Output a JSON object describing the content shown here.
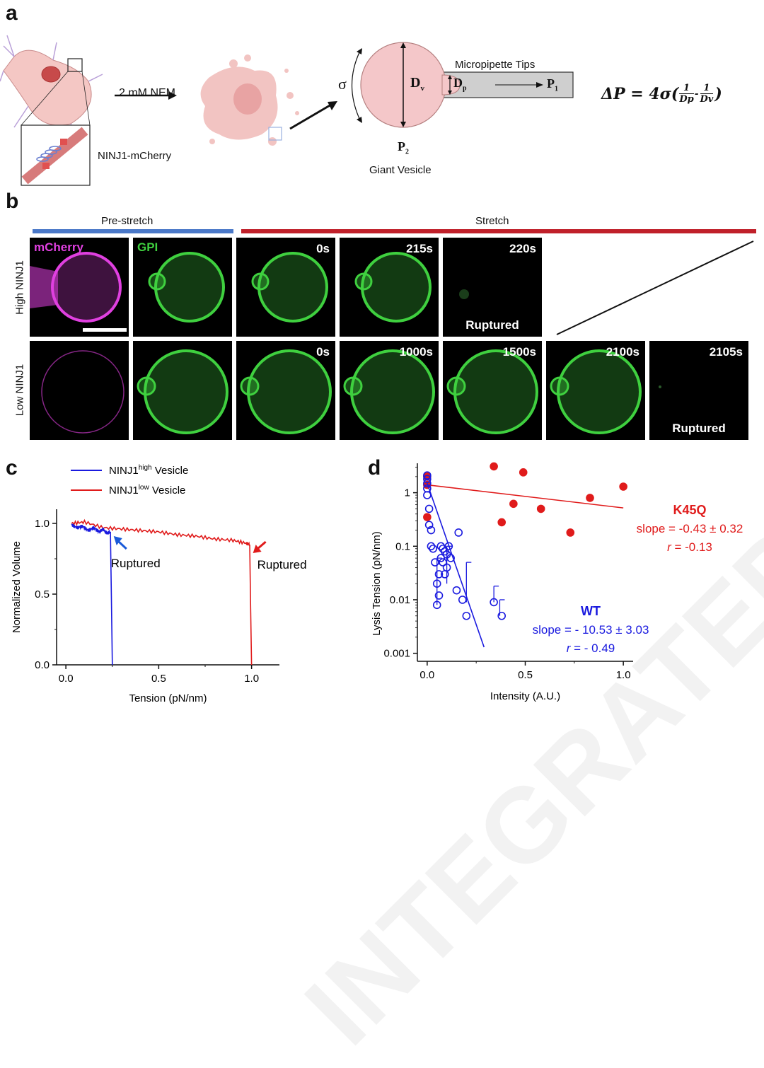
{
  "panels": {
    "a": "a",
    "b": "b",
    "c": "c",
    "d": "d"
  },
  "panel_a": {
    "nem_label": "2 mM NEM",
    "ninj_label": "NINJ1-mCherry",
    "sigma": "σ",
    "dv": "D",
    "dv_sub": "v",
    "dp": "D",
    "dp_sub": "p",
    "p1": "P",
    "p1_sub": "1",
    "p2": "P",
    "p2_sub": "2",
    "pipette_label": "Micropipette Tips",
    "vesicle_label": "Giant Vesicle",
    "equation": "ΔP = 4σ(",
    "eq_frac1_num": "1",
    "eq_frac1_den": "Dp",
    "eq_minus": "-",
    "eq_frac2_num": "1",
    "eq_frac2_den": "Dv",
    "eq_close": ")"
  },
  "panel_b": {
    "prestretch": "Pre-stretch",
    "stretch": "Stretch",
    "row_high": "High NINJ1",
    "row_low": "Low NINJ1",
    "colors": {
      "prestretch": "#4a78c8",
      "stretch": "#c0202a",
      "mcherry": "#e040e0",
      "gpi": "#3fd03f"
    },
    "high_tiles": [
      {
        "tl": "mCherry",
        "tr": "",
        "bottom": ""
      },
      {
        "tl": "GPI",
        "tr": "",
        "bottom": ""
      },
      {
        "tl": "",
        "tr": "0s",
        "bottom": ""
      },
      {
        "tl": "",
        "tr": "215s",
        "bottom": ""
      },
      {
        "tl": "",
        "tr": "220s",
        "bottom": "Ruptured"
      }
    ],
    "low_tiles": [
      {
        "tr": "",
        "bottom": ""
      },
      {
        "tr": "",
        "bottom": ""
      },
      {
        "tr": "0s",
        "bottom": ""
      },
      {
        "tr": "1000s",
        "bottom": ""
      },
      {
        "tr": "1500s",
        "bottom": ""
      },
      {
        "tr": "2100s",
        "bottom": ""
      },
      {
        "tr": "2105s",
        "bottom": "Ruptured"
      }
    ]
  },
  "chart_data": [
    {
      "type": "line",
      "xlabel": "Tension (pN/nm)",
      "ylabel": "Normalized Volume",
      "xlim": [
        -0.05,
        1.15
      ],
      "ylim": [
        0,
        1.1
      ],
      "xticks": [
        "0.0",
        "0.5",
        "1.0"
      ],
      "yticks": [
        "0.0",
        "0.5",
        "1.0"
      ],
      "legend_position": "top-center",
      "series": [
        {
          "name": "NINJ1",
          "name_sup": "high",
          "name_suffix": " Vesicle",
          "color": "#1a1adf",
          "x": [
            0.03,
            0.06,
            0.09,
            0.12,
            0.15,
            0.18,
            0.2,
            0.22,
            0.24,
            0.245,
            0.25
          ],
          "y": [
            0.99,
            0.97,
            0.98,
            0.95,
            0.97,
            0.94,
            0.96,
            0.93,
            0.94,
            0.5,
            0.0
          ]
        },
        {
          "name": "NINJ1",
          "name_sup": "low",
          "name_suffix": " Vesicle",
          "color": "#e01b1b",
          "x": [
            0.03,
            0.1,
            0.2,
            0.3,
            0.4,
            0.5,
            0.6,
            0.7,
            0.8,
            0.9,
            0.97,
            0.99,
            0.995,
            1.0
          ],
          "y": [
            1.0,
            1.01,
            0.97,
            0.96,
            0.95,
            0.94,
            0.92,
            0.91,
            0.89,
            0.88,
            0.86,
            0.85,
            0.4,
            0.0
          ]
        }
      ],
      "annotations": [
        {
          "text": "Ruptured",
          "x": 0.25,
          "y": 0.93
        },
        {
          "text": "Ruptured",
          "x": 1.0,
          "y": 0.86
        }
      ]
    },
    {
      "type": "scatter",
      "xlabel": "Intensity (A.U.)",
      "ylabel": "Lysis Tension (pN/nm)",
      "xlim": [
        -0.05,
        1.05
      ],
      "ylim_log10": [
        -3.15,
        0.55
      ],
      "y_scale": "log",
      "xticks": [
        "0.0",
        "0.5",
        "1.0"
      ],
      "yticks": [
        "0.001",
        "0.01",
        "0.1",
        "1"
      ],
      "series": [
        {
          "name": "K45Q",
          "color": "#e01b1b",
          "fill": true,
          "x": [
            0.0,
            0.0,
            0.0,
            0.34,
            0.38,
            0.44,
            0.49,
            0.58,
            0.73,
            0.83,
            1.0
          ],
          "y": [
            2.0,
            1.4,
            0.35,
            3.1,
            0.28,
            0.62,
            2.4,
            0.5,
            0.18,
            0.8,
            1.3
          ],
          "fit": {
            "x": [
              0.0,
              1.0
            ],
            "y": [
              1.4,
              0.52
            ]
          },
          "stats": [
            "K45Q",
            "slope = -0.43 ± 0.32",
            "r = -0.13"
          ]
        },
        {
          "name": "WT",
          "color": "#1a1adf",
          "fill": false,
          "x": [
            0.0,
            0.0,
            0.0,
            0.0,
            0.0,
            0.01,
            0.01,
            0.02,
            0.02,
            0.03,
            0.04,
            0.05,
            0.05,
            0.06,
            0.06,
            0.07,
            0.07,
            0.08,
            0.08,
            0.09,
            0.09,
            0.1,
            0.1,
            0.11,
            0.12,
            0.15,
            0.16,
            0.18,
            0.2,
            0.34,
            0.38
          ],
          "y": [
            2.1,
            1.8,
            1.5,
            1.2,
            0.9,
            0.5,
            0.25,
            0.2,
            0.1,
            0.09,
            0.05,
            0.02,
            0.008,
            0.03,
            0.012,
            0.06,
            0.1,
            0.09,
            0.05,
            0.03,
            0.08,
            0.07,
            0.04,
            0.1,
            0.06,
            0.015,
            0.18,
            0.01,
            0.005,
            0.009,
            0.005
          ],
          "fit": {
            "x": [
              0.0,
              0.29
            ],
            "y": [
              1.5,
              0.0013
            ]
          },
          "stats": [
            "WT",
            "slope = - 10.53 ± 3.03",
            "r = - 0.49"
          ]
        }
      ]
    }
  ]
}
